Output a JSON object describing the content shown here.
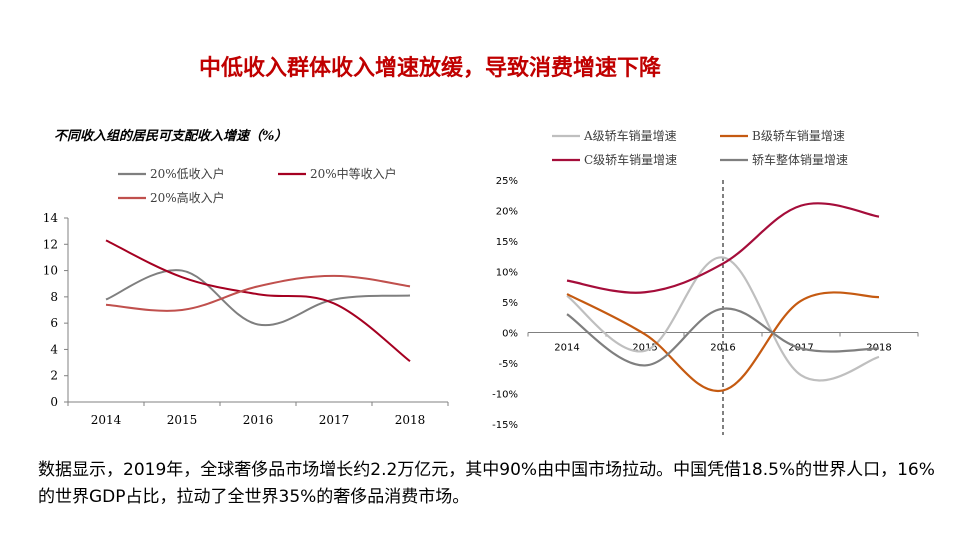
{
  "slide": {
    "title": "中低收入群体收入增速放缓，导致消费增速下降",
    "body_text": "数据显示，2019年，全球奢侈品市场增长约2.2万亿元，其中90%由中国市场拉动。中国凭借18.5%的世界人口，16%的世界GDP占比，拉动了全世界35%的奢侈品消费市场。"
  },
  "chart_data": [
    {
      "type": "line",
      "title": "不同收入组的居民可支配收入增速（%）",
      "categories": [
        "2014",
        "2015",
        "2016",
        "2017",
        "2018"
      ],
      "series": [
        {
          "name": "20%低收入户",
          "color": "#7f7f7f",
          "values": [
            7.8,
            10.0,
            5.9,
            7.8,
            8.1
          ]
        },
        {
          "name": "20%中等收入户",
          "color": "#a50021",
          "values": [
            12.3,
            9.5,
            8.2,
            7.5,
            3.1
          ]
        },
        {
          "name": "20%高收入户",
          "color": "#c0504d",
          "values": [
            7.4,
            7.0,
            8.8,
            9.6,
            8.8
          ]
        }
      ],
      "ylim": [
        0,
        14
      ],
      "yticks": [
        "0",
        "2",
        "4",
        "6",
        "8",
        "10",
        "12",
        "14"
      ],
      "legend": "top",
      "grid": false
    },
    {
      "type": "line",
      "categories": [
        "2014",
        "2015",
        "2016",
        "2017",
        "2018"
      ],
      "series": [
        {
          "name": "A级轿车销量增速",
          "color": "#bfbfbf",
          "values": [
            6.0,
            -3.0,
            12.3,
            -7.0,
            -4.0
          ]
        },
        {
          "name": "B级轿车销量增速",
          "color": "#c55a11",
          "values": [
            6.3,
            -0.3,
            -9.5,
            5.2,
            5.8
          ]
        },
        {
          "name": "C级轿车销量增速",
          "color": "#a50d3a",
          "values": [
            8.5,
            6.6,
            11.3,
            20.8,
            19.0
          ]
        },
        {
          "name": "轿车整体销量增速",
          "color": "#7f7f7f",
          "values": [
            3.0,
            -5.4,
            3.9,
            -2.6,
            -2.6
          ]
        }
      ],
      "ylim": [
        -15,
        25
      ],
      "yticks": [
        "25%",
        "20%",
        "15%",
        "10%",
        "5%",
        "0%",
        "-5%",
        "-10%",
        "-15%"
      ],
      "legend": "top",
      "grid": false,
      "annotations": [
        {
          "type": "vertical-dashed-line",
          "x": "2016"
        }
      ]
    }
  ]
}
